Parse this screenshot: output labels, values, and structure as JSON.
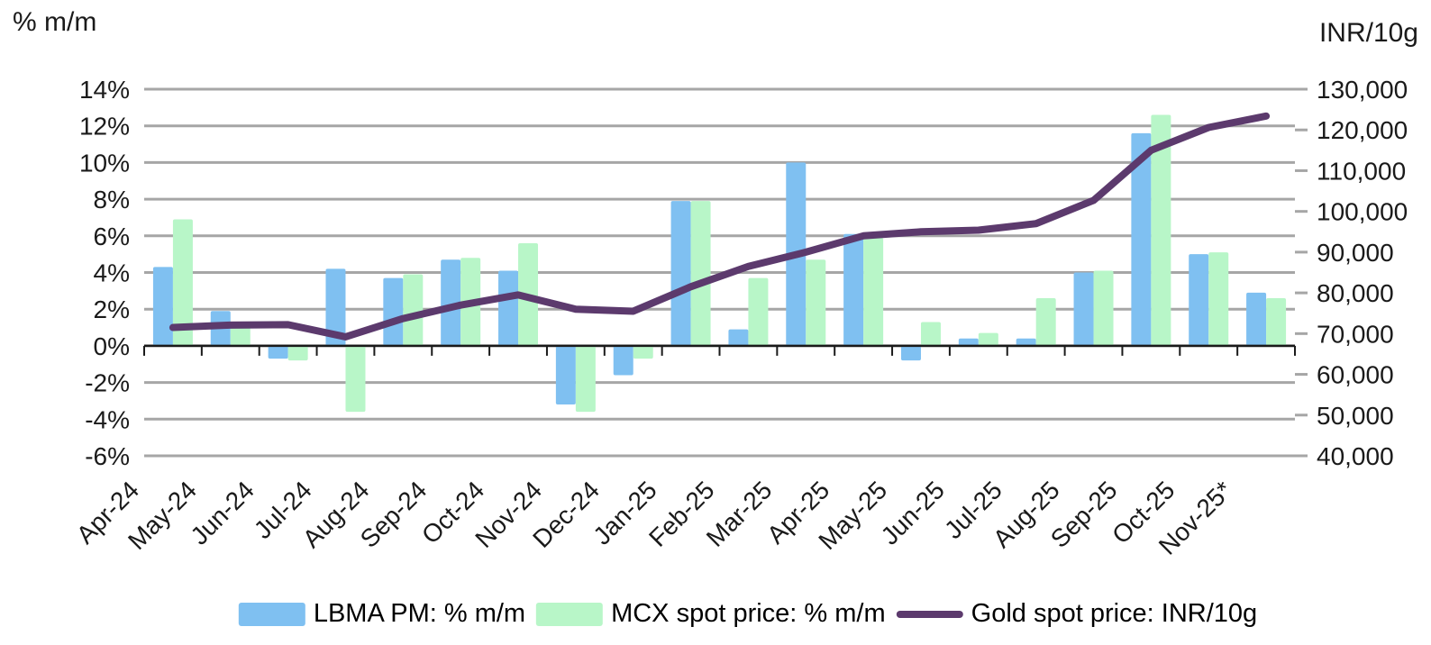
{
  "chart_data": {
    "type": "bar",
    "subtype": "dual-axis bars with line overlay",
    "categories": [
      "Apr-24",
      "May-24",
      "Jun-24",
      "Jul-24",
      "Aug-24",
      "Sep-24",
      "Oct-24",
      "Nov-24",
      "Dec-24",
      "Jan-25",
      "Feb-25",
      "Mar-25",
      "Apr-25",
      "May-25",
      "Jun-25",
      "Jul-25",
      "Aug-25",
      "Sep-25",
      "Oct-25",
      "Nov-25*"
    ],
    "series": [
      {
        "name": "LBMA PM: % m/m",
        "type": "bar",
        "axis": "left",
        "color": "#7fc0f1",
        "values": [
          4.3,
          1.9,
          -0.7,
          4.2,
          3.7,
          4.7,
          4.1,
          -3.2,
          -1.6,
          7.9,
          0.9,
          10.0,
          6.1,
          -0.8,
          0.4,
          0.4,
          4.0,
          11.6,
          5.0,
          2.9
        ]
      },
      {
        "name": "MCX spot price: % m/m",
        "type": "bar",
        "axis": "left",
        "color": "#b8f6c8",
        "values": [
          6.9,
          1.0,
          -0.8,
          -3.6,
          3.9,
          4.8,
          5.6,
          -3.6,
          -0.7,
          7.9,
          3.7,
          4.7,
          5.9,
          1.3,
          0.7,
          2.6,
          4.1,
          12.6,
          5.1,
          2.6
        ]
      },
      {
        "name": "Gold spot price: INR/10g",
        "type": "line",
        "axis": "right",
        "color": "#5c3a6d",
        "values": [
          71500,
          72100,
          72200,
          69200,
          73700,
          77000,
          79500,
          76000,
          75500,
          81500,
          86500,
          90000,
          94000,
          95000,
          95400,
          97000,
          102700,
          115000,
          120600,
          123400
        ]
      }
    ],
    "left_axis": {
      "title": "% m/m",
      "min": -6,
      "max": 14,
      "step": 2,
      "tick_format": "percent",
      "tick_labels": [
        "14%",
        "12%",
        "10%",
        "8%",
        "6%",
        "4%",
        "2%",
        "0%",
        "-2%",
        "-4%",
        "-6%"
      ]
    },
    "right_axis": {
      "title": "INR/10g",
      "min": 40000,
      "max": 130000,
      "step": 10000,
      "tick_labels": [
        "130,000",
        "120,000",
        "110,000",
        "100,000",
        "90,000",
        "80,000",
        "70,000",
        "60,000",
        "50,000",
        "40,000"
      ]
    },
    "grid": true,
    "gridline_color": "#a6a6a6",
    "zero_axis_color": "#1a1a1a",
    "legend_position": "bottom",
    "x_label_rotation_deg": -45
  }
}
